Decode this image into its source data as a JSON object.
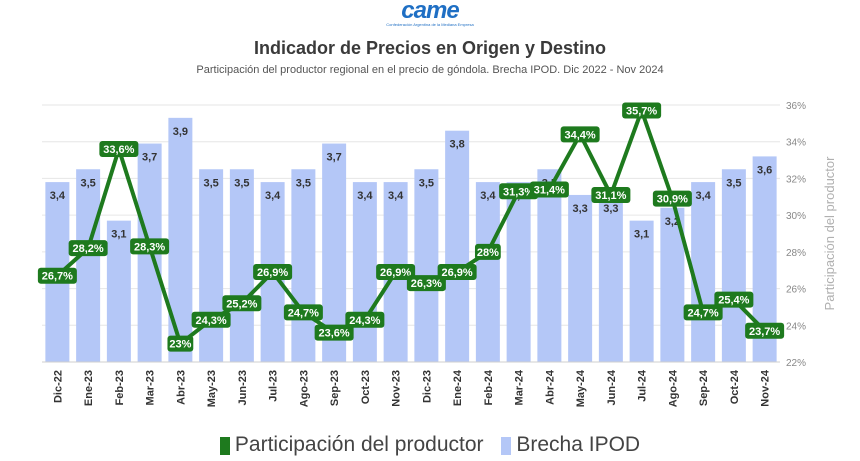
{
  "header": {
    "logo_text": "came",
    "logo_subtext": "Confederación Argentina de la Mediana Empresa"
  },
  "chart_data": {
    "type": "bar",
    "title": "Indicador de Precios en Origen y Destino",
    "subtitle": "Participación del productor regional en el precio de góndola. Brecha IPOD. Dic 2022 - Nov 2024",
    "categories": [
      "Dic-22",
      "Ene-23",
      "Feb-23",
      "Mar-23",
      "Abr-23",
      "May-23",
      "Jun-23",
      "Jul-23",
      "Ago-23",
      "Sep-23",
      "Oct-23",
      "Nov-23",
      "Dic-23",
      "Ene-24",
      "Feb-24",
      "Mar-24",
      "Abr-24",
      "May-24",
      "Jun-24",
      "Jul-24",
      "Ago-24",
      "Sep-24",
      "Oct-24",
      "Nov-24"
    ],
    "series": [
      {
        "name": "Participación del productor",
        "type": "line",
        "axis": "right",
        "color": "#1e7a1e",
        "values": [
          26.7,
          28.2,
          33.6,
          28.3,
          23.0,
          24.3,
          25.2,
          26.9,
          24.7,
          23.6,
          24.3,
          26.9,
          26.3,
          26.9,
          28.0,
          31.3,
          31.4,
          34.4,
          31.1,
          35.7,
          30.9,
          24.7,
          25.4,
          23.7
        ],
        "labels": [
          "26,7%",
          "28,2%",
          "33,6%",
          "28,3%",
          "23%",
          "24,3%",
          "25,2%",
          "26,9%",
          "24,7%",
          "23,6%",
          "24,3%",
          "26,9%",
          "26,3%",
          "26,9%",
          "28%",
          "31,3%",
          "31,4%",
          "34,4%",
          "31,1%",
          "35,7%",
          "30,9%",
          "24,7%",
          "25,4%",
          "23,7%"
        ]
      },
      {
        "name": "Brecha IPOD",
        "type": "bar",
        "axis": "hidden",
        "color": "#b4c7f7",
        "values": [
          3.4,
          3.5,
          3.1,
          3.7,
          3.9,
          3.5,
          3.5,
          3.4,
          3.5,
          3.7,
          3.4,
          3.4,
          3.5,
          3.8,
          3.4,
          3.4,
          3.5,
          3.3,
          3.3,
          3.1,
          3.2,
          3.4,
          3.5,
          3.6
        ],
        "labels": [
          "3,4",
          "3,5",
          "3,1",
          "3,7",
          "3,9",
          "3,5",
          "3,5",
          "3,4",
          "3,5",
          "3,7",
          "3,4",
          "3,4",
          "3,5",
          "3,8",
          "3,4",
          "3,4",
          "3,5",
          "3,3",
          "3,3",
          "3,1",
          "3,2",
          "3,4",
          "3,5",
          "3,6"
        ]
      }
    ],
    "right_axis": {
      "label": "Participación del productor",
      "ylim": [
        22,
        36
      ],
      "ticks": [
        "22%",
        "24%",
        "26%",
        "28%",
        "30%",
        "32%",
        "34%",
        "36%"
      ]
    },
    "bar_axis_ylim": [
      2.0,
      4.0
    ],
    "grid": true,
    "legend_position": "bottom"
  }
}
